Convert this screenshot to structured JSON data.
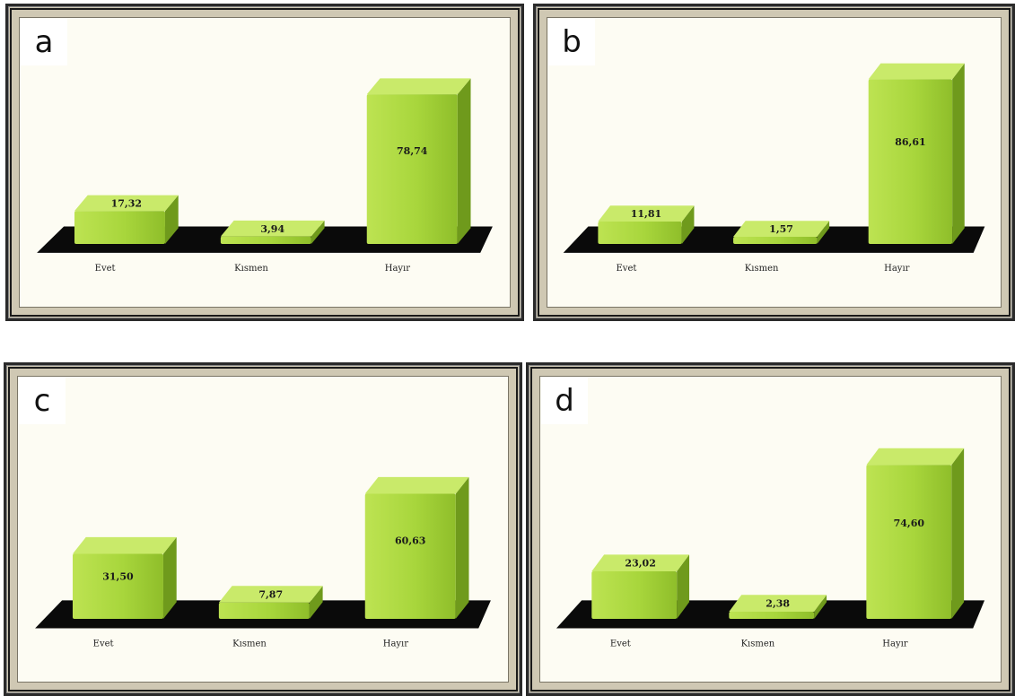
{
  "chart_data": [
    {
      "panel_label": "a",
      "type": "bar",
      "categories": [
        "Evet",
        "Kısmen",
        "Hayır"
      ],
      "values": [
        17.32,
        3.94,
        78.74
      ],
      "value_labels": [
        "17,32",
        "3,94",
        "78,74"
      ],
      "title": "",
      "xlabel": "",
      "ylabel": "",
      "ylim": [
        0,
        100
      ],
      "grid": false
    },
    {
      "panel_label": "b",
      "type": "bar",
      "categories": [
        "Evet",
        "Kısmen",
        "Hayır"
      ],
      "values": [
        11.81,
        1.57,
        86.61
      ],
      "value_labels": [
        "11,81",
        "1,57",
        "86,61"
      ],
      "title": "",
      "xlabel": "",
      "ylabel": "",
      "ylim": [
        0,
        100
      ],
      "grid": false
    },
    {
      "panel_label": "c",
      "type": "bar",
      "categories": [
        "Evet",
        "Kısmen",
        "Hayır"
      ],
      "values": [
        31.5,
        7.87,
        60.63
      ],
      "value_labels": [
        "31,50",
        "7,87",
        "60,63"
      ],
      "title": "",
      "xlabel": "",
      "ylabel": "",
      "ylim": [
        0,
        100
      ],
      "grid": false
    },
    {
      "panel_label": "d",
      "type": "bar",
      "categories": [
        "Evet",
        "Kısmen",
        "Hayır"
      ],
      "values": [
        23.02,
        2.38,
        74.6
      ],
      "value_labels": [
        "23,02",
        "2,38",
        "74,60"
      ],
      "title": "",
      "xlabel": "",
      "ylabel": "",
      "ylim": [
        0,
        100
      ],
      "grid": false
    }
  ],
  "colors": {
    "bar_front": "#a8d63c",
    "bar_side": "#6f9a1c",
    "bar_top": "#c9ea6a",
    "floor": "#0a0a0a",
    "panel_bg": "#fdfcf3",
    "frame": "#cfc8b3"
  }
}
